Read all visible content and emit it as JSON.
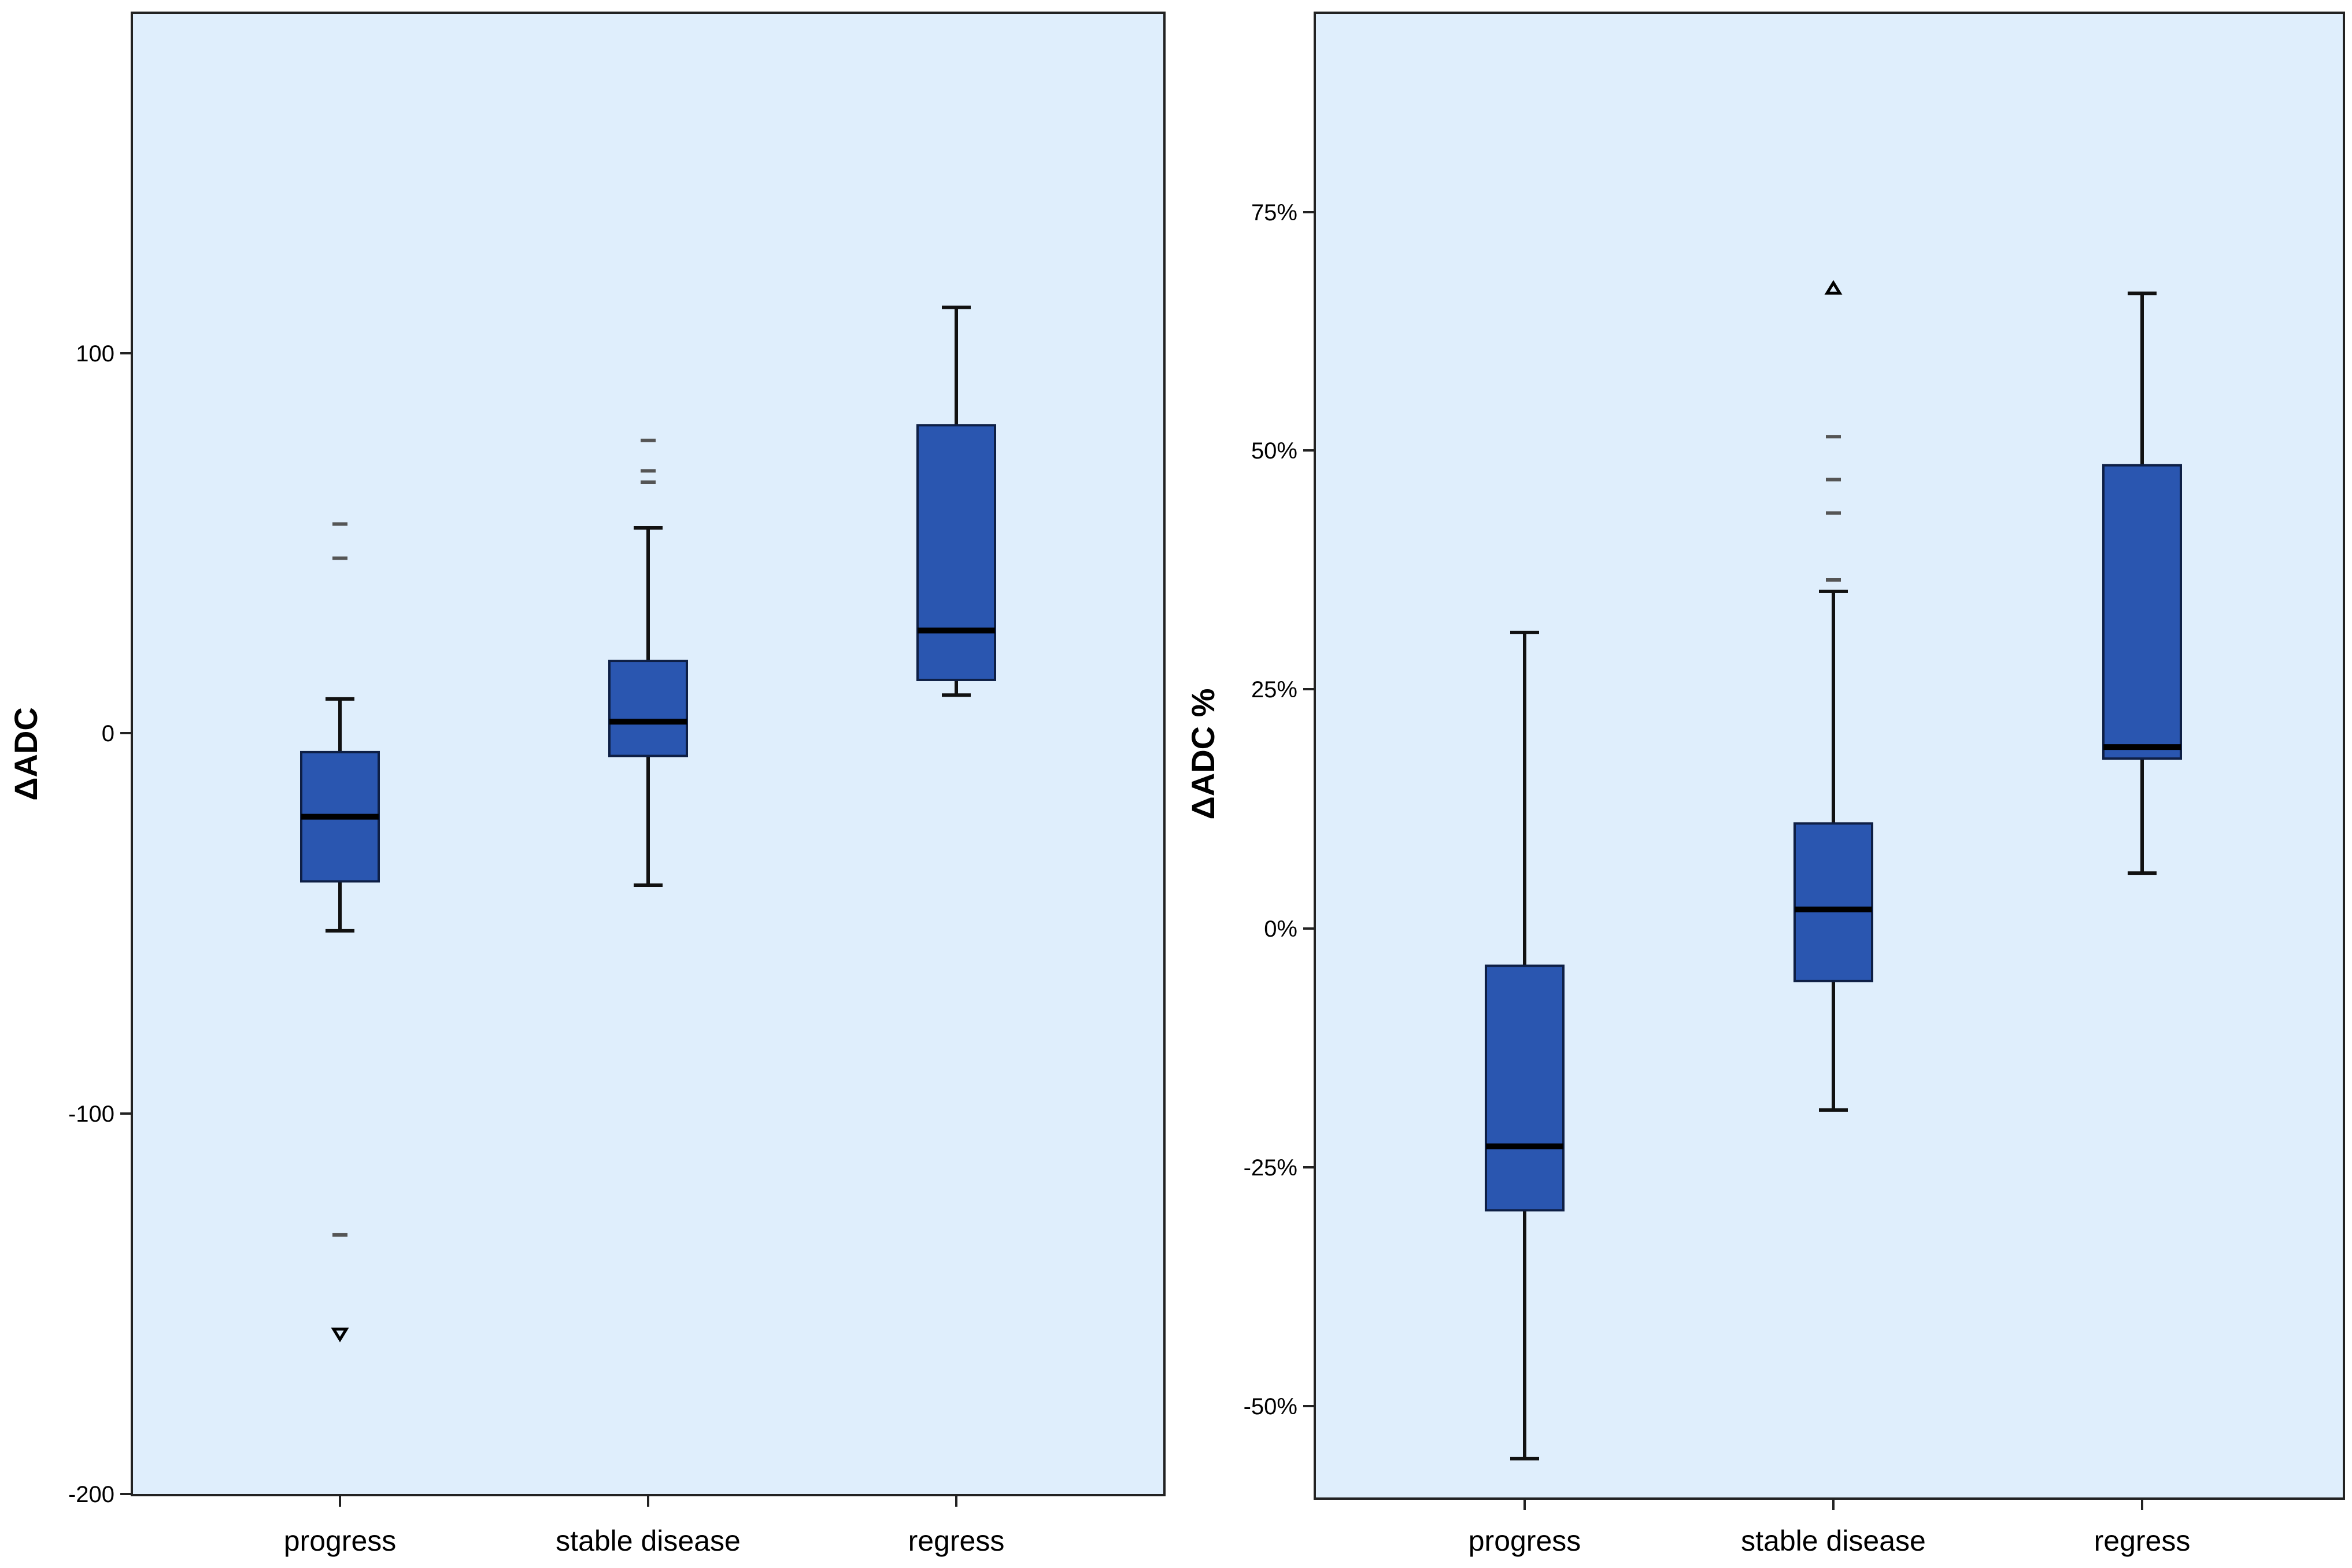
{
  "chart_data": [
    {
      "type": "boxplot",
      "ylabel": "ΔADC",
      "ylim": [
        -200,
        180
      ],
      "yticks": [
        100,
        0,
        -100,
        -200
      ],
      "ytick_labels": [
        "100",
        "0",
        "-100",
        "-200"
      ],
      "categories": [
        "progress",
        "stable disease",
        "regress"
      ],
      "boxes": [
        {
          "category": "progress",
          "whisker_low": -52,
          "q1": -39,
          "median": -22,
          "q3": -5,
          "whisker_high": 9,
          "outliers": [
            55,
            46,
            -132
          ],
          "extremes_down": [
            -158
          ],
          "extremes_up": []
        },
        {
          "category": "stable disease",
          "whisker_low": -40,
          "q1": -6,
          "median": 3,
          "q3": 19,
          "whisker_high": 54,
          "outliers": [
            77,
            69,
            66
          ],
          "extremes_down": [],
          "extremes_up": []
        },
        {
          "category": "regress",
          "whisker_low": 10,
          "q1": 14,
          "median": 27,
          "q3": 81,
          "whisker_high": 112,
          "outliers": [],
          "extremes_down": [],
          "extremes_up": []
        }
      ]
    },
    {
      "type": "boxplot",
      "ylabel": "ΔADC %",
      "ylim": [
        -58,
        95
      ],
      "yticks": [
        75,
        50,
        25,
        0,
        -25,
        -50
      ],
      "ytick_labels": [
        "75%",
        "50%",
        "25%",
        "0%",
        "-25%",
        "-50%"
      ],
      "categories": [
        "progress",
        "stable disease",
        "regress"
      ],
      "boxes": [
        {
          "category": "progress",
          "whisker_low": -55.5,
          "q1": -29.5,
          "median": -22.8,
          "q3": -3.9,
          "whisker_high": 31,
          "outliers": [],
          "extremes_down": [],
          "extremes_up": []
        },
        {
          "category": "stable disease",
          "whisker_low": -19,
          "q1": -5.5,
          "median": 2,
          "q3": 11,
          "whisker_high": 35.3,
          "outliers": [
            51.5,
            47,
            43.5,
            36.5
          ],
          "extremes_down": [],
          "extremes_up": [
            67
          ]
        },
        {
          "category": "regress",
          "whisker_low": 5.8,
          "q1": 17.8,
          "median": 19,
          "q3": 48.5,
          "whisker_high": 66.5,
          "outliers": [],
          "extremes_down": [],
          "extremes_up": []
        }
      ]
    }
  ]
}
